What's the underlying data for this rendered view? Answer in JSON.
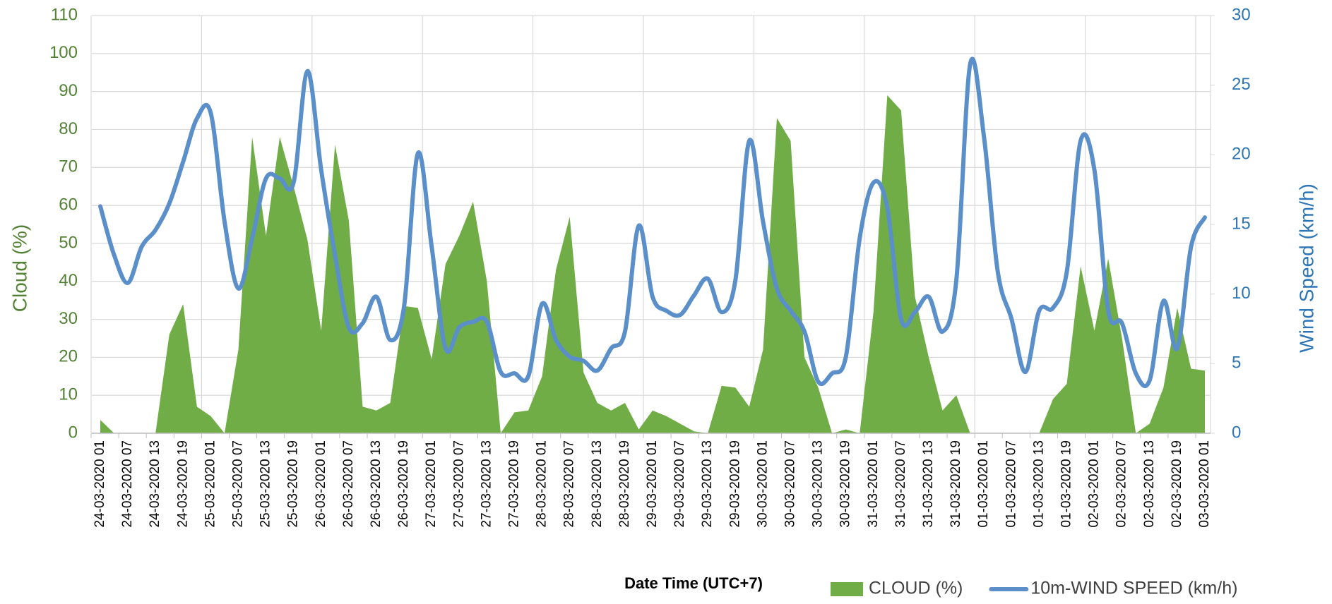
{
  "chart_data": {
    "type": "area",
    "x_label": "Date Time (UTC+7)",
    "y_label": "Cloud (%)",
    "y2_label": "Wind Speed (km/h)",
    "categories": [
      "24-03-2020 01",
      null,
      "24-03-2020 07",
      null,
      "24-03-2020 13",
      null,
      "24-03-2020 19",
      null,
      "25-03-2020 01",
      null,
      "25-03-2020 07",
      null,
      "25-03-2020 13",
      null,
      "25-03-2020 19",
      null,
      "26-03-2020 01",
      null,
      "26-03-2020 07",
      null,
      "26-03-2020 13",
      null,
      "26-03-2020 19",
      null,
      "27-03-2020 01",
      null,
      "27-03-2020 07",
      null,
      "27-03-2020 13",
      null,
      "27-03-2020 19",
      null,
      "28-03-2020 01",
      null,
      "28-03-2020 07",
      null,
      "28-03-2020 13",
      null,
      "28-03-2020 19",
      null,
      "29-03-2020 01",
      null,
      "29-03-2020 07",
      null,
      "29-03-2020 13",
      null,
      "29-03-2020 19",
      null,
      "30-03-2020 01",
      null,
      "30-03-2020 07",
      null,
      "30-03-2020 13",
      null,
      "30-03-2020 19",
      null,
      "31-03-2020 01",
      null,
      "31-03-2020 07",
      null,
      "31-03-2020 13",
      null,
      "31-03-2020 19",
      null,
      "01-03-2020 01",
      null,
      "01-03-2020 07",
      null,
      "01-03-2020 13",
      null,
      "01-03-2020 19",
      null,
      "02-03-2020 01",
      null,
      "02-03-2020 07",
      null,
      "02-03-2020 13",
      null,
      "02-03-2020 19",
      null,
      "03-03-2020 01"
    ],
    "series": [
      {
        "name": "CLOUD (%)",
        "type": "area",
        "color": "#70ad47",
        "values": [
          3.5,
          0,
          0,
          0,
          0,
          26,
          34,
          7,
          4.5,
          0,
          22,
          78,
          52,
          78,
          65,
          51,
          27,
          76,
          56,
          7,
          6,
          8,
          33.5,
          33,
          19.5,
          44.5,
          52,
          61,
          40,
          0,
          5.5,
          6,
          15,
          43,
          57,
          16,
          8,
          6,
          8,
          1,
          6,
          4.5,
          2.5,
          0.5,
          0,
          12.5,
          12,
          7,
          22,
          83,
          77,
          20,
          12,
          0,
          1,
          0,
          32,
          89,
          85,
          36,
          20,
          6,
          10,
          0,
          0,
          0,
          0,
          0,
          0,
          9,
          13,
          44,
          27,
          46,
          25,
          0,
          2.5,
          12,
          33,
          17,
          16.5
        ]
      },
      {
        "name": "10m-WIND SPEED (km/h)",
        "type": "line",
        "axis": "y2",
        "color": "#5b8fc9",
        "values": [
          16.3,
          12.8,
          10.8,
          13.4,
          14.6,
          16.5,
          19.5,
          22.6,
          23,
          15.2,
          10.4,
          14,
          18.3,
          18.3,
          18,
          26,
          18.9,
          12.8,
          7.6,
          7.9,
          9.8,
          6.7,
          9.1,
          20.1,
          13.4,
          6.1,
          7.6,
          8,
          8,
          4.4,
          4.3,
          4.1,
          9.3,
          6.7,
          5.5,
          5.2,
          4.5,
          6.1,
          7.3,
          14.9,
          9.8,
          8.8,
          8.5,
          9.9,
          11.1,
          8.7,
          11,
          21,
          15.2,
          10.4,
          8.8,
          7.3,
          3.7,
          4.3,
          5.5,
          14,
          18,
          16.2,
          8.2,
          8.7,
          9.8,
          7.3,
          11,
          26.5,
          21.3,
          11.6,
          8.2,
          4.4,
          8.8,
          9,
          11.6,
          21,
          18.9,
          8.8,
          7.9,
          4.3,
          3.8,
          9.5,
          6.1,
          13.4,
          15.5
        ]
      }
    ],
    "ylim": [
      0,
      110
    ],
    "yticks": [
      0,
      10,
      20,
      30,
      40,
      50,
      60,
      70,
      80,
      90,
      100,
      110
    ],
    "y2lim": [
      0,
      30
    ],
    "y2ticks": [
      0,
      5,
      10,
      15,
      20,
      25,
      30
    ],
    "grid": true,
    "y_color": "#548235",
    "y2_color": "#2e75b6",
    "legend": "bottom"
  }
}
